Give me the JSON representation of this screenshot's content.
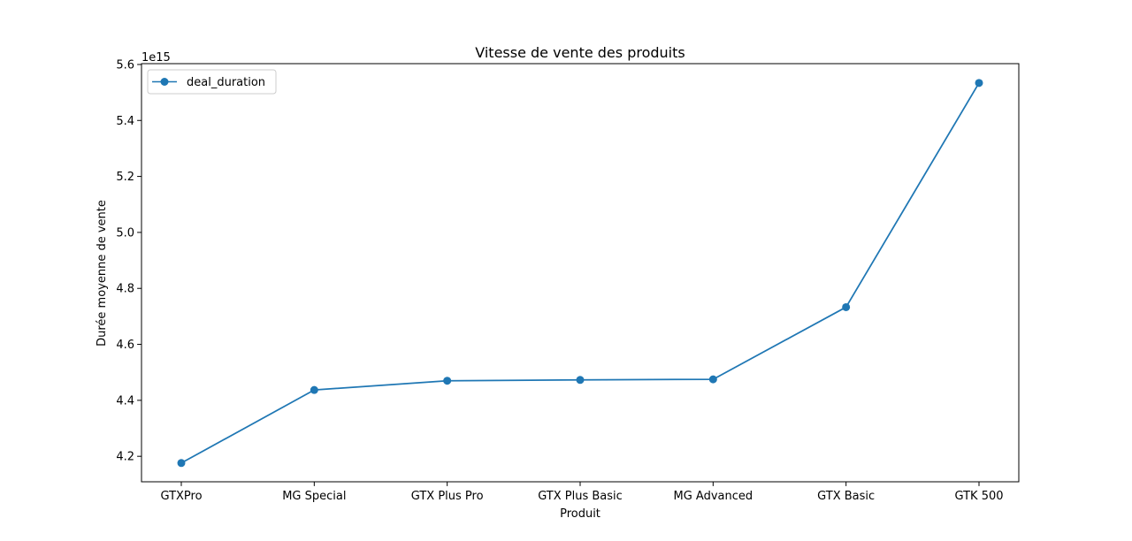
{
  "chart_data": {
    "type": "line",
    "title": "Vitesse de vente des produits",
    "xlabel": "Produit",
    "ylabel": "Durée moyenne de vente",
    "y_offset_label": "1e15",
    "categories": [
      "GTXPro",
      "MG Special",
      "GTX Plus Pro",
      "GTX Plus Basic",
      "MG Advanced",
      "GTX Basic",
      "GTK 500"
    ],
    "series": [
      {
        "name": "deal_duration",
        "color": "#1f77b4",
        "marker": "circle",
        "values": [
          4176000000000000.0,
          4437000000000000.0,
          4470000000000000.0,
          4473000000000000.0,
          4475000000000000.0,
          4733000000000000.0,
          5534000000000000.0
        ]
      }
    ],
    "ylim": [
      4109000000000000.0,
      5603000000000000.0
    ],
    "yticks": [
      4200000000000000.0,
      4400000000000000.0,
      4600000000000000.0,
      4800000000000000.0,
      5000000000000000.0,
      5200000000000000.0,
      5400000000000000.0,
      5600000000000000.0
    ],
    "ytick_labels": [
      "4.2",
      "4.4",
      "4.6",
      "4.8",
      "5.0",
      "5.2",
      "5.4",
      "5.6"
    ],
    "grid": false,
    "legend_position": "upper-left"
  }
}
